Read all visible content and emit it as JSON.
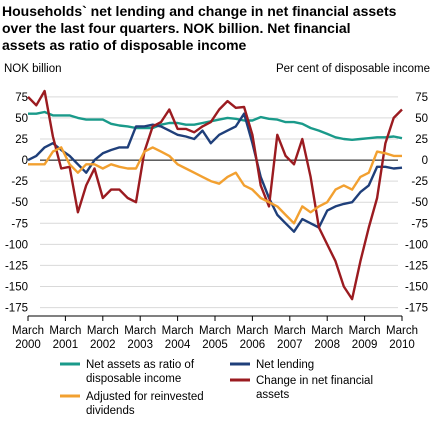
{
  "chart_data": {
    "type": "line",
    "title": "Households` net lending and change in net financial assets over the last four quarters. NOK billion. Net financial assets as ratio of disposable income",
    "left_axis_label": "NOK billion",
    "right_axis_label": "Per cent of disposable income",
    "y_ticks": [
      75,
      50,
      25,
      0,
      -25,
      -50,
      -75,
      -100,
      -125,
      -150,
      -175
    ],
    "ylim": [
      -185,
      95
    ],
    "grid": true,
    "x_tick_labels": [
      [
        "March",
        "2000"
      ],
      [
        "March",
        "2001"
      ],
      [
        "March",
        "2002"
      ],
      [
        "March",
        "2003"
      ],
      [
        "March",
        "2004"
      ],
      [
        "March",
        "2005"
      ],
      [
        "March",
        "2006"
      ],
      [
        "March",
        "2007"
      ],
      [
        "March",
        "2008"
      ],
      [
        "March",
        "2009"
      ],
      [
        "March",
        "2010"
      ]
    ],
    "x_start": {
      "year": 2000,
      "quarter": 1
    },
    "legend_placement": "bottom",
    "series": [
      {
        "name": "Net assets as ratio of disposable income",
        "color": "#1a9a8a",
        "values": [
          55,
          55,
          57,
          53,
          53,
          53,
          50,
          48,
          48,
          48,
          43,
          41,
          40,
          38,
          38,
          38,
          42,
          44,
          44,
          42,
          42,
          44,
          46,
          48,
          50,
          49,
          47,
          47,
          51,
          49,
          48,
          45,
          45,
          43,
          38,
          35,
          31,
          27,
          25,
          24,
          25,
          26,
          27,
          27,
          28,
          26
        ]
      },
      {
        "name": "Net lending",
        "color": "#1f3f7a",
        "values": [
          0,
          5,
          15,
          20,
          12,
          5,
          -5,
          -15,
          0,
          8,
          12,
          15,
          15,
          40,
          40,
          42,
          40,
          35,
          30,
          28,
          25,
          35,
          20,
          30,
          35,
          40,
          55,
          20,
          -20,
          -45,
          -65,
          -75,
          -85,
          -70,
          -75,
          -80,
          -60,
          -55,
          -52,
          -50,
          -38,
          -30,
          -8,
          -8,
          -10,
          -9
        ]
      },
      {
        "name": "Change in net financial assets",
        "color": "#9b1b20",
        "values": [
          75,
          65,
          82,
          28,
          -10,
          -8,
          -62,
          -30,
          -10,
          -45,
          -35,
          -35,
          -45,
          -50,
          10,
          40,
          45,
          60,
          37,
          37,
          33,
          40,
          45,
          60,
          70,
          62,
          63,
          30,
          -30,
          -55,
          30,
          5,
          -5,
          25,
          -20,
          -80,
          -100,
          -120,
          -150,
          -165,
          -120,
          -80,
          -45,
          20,
          50,
          60
        ]
      },
      {
        "name": "Adjusted for reinvested dividends",
        "color": "#f2a030",
        "values": [
          -5,
          -5,
          -5,
          10,
          15,
          -5,
          -15,
          -5,
          -5,
          -10,
          -5,
          -8,
          -10,
          -10,
          10,
          15,
          10,
          5,
          -5,
          -10,
          -15,
          -20,
          -25,
          -28,
          -20,
          -15,
          -30,
          -35,
          -45,
          -50,
          -55,
          -65,
          -75,
          -55,
          -62,
          -55,
          -50,
          -35,
          -30,
          -35,
          -20,
          -15,
          10,
          8,
          5,
          5
        ]
      }
    ]
  }
}
